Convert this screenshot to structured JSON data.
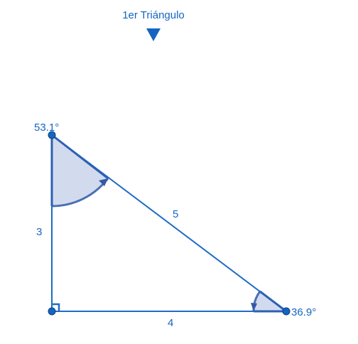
{
  "header": {
    "title": "1er Triángulo",
    "toggle_icon": "triangle-down-icon"
  },
  "triangle": {
    "sides": {
      "vertical": "3",
      "horizontal": "4",
      "hypotenuse": "5"
    },
    "angles": {
      "top": "53.1°",
      "right": "36.9°"
    },
    "right_angle_marker": "right-angle-icon"
  },
  "colors": {
    "line": "#1e6cc6",
    "point": "#1565c0",
    "fill": "#d2dbee",
    "arc": "#4a6fb3",
    "text": "#1565c0"
  }
}
